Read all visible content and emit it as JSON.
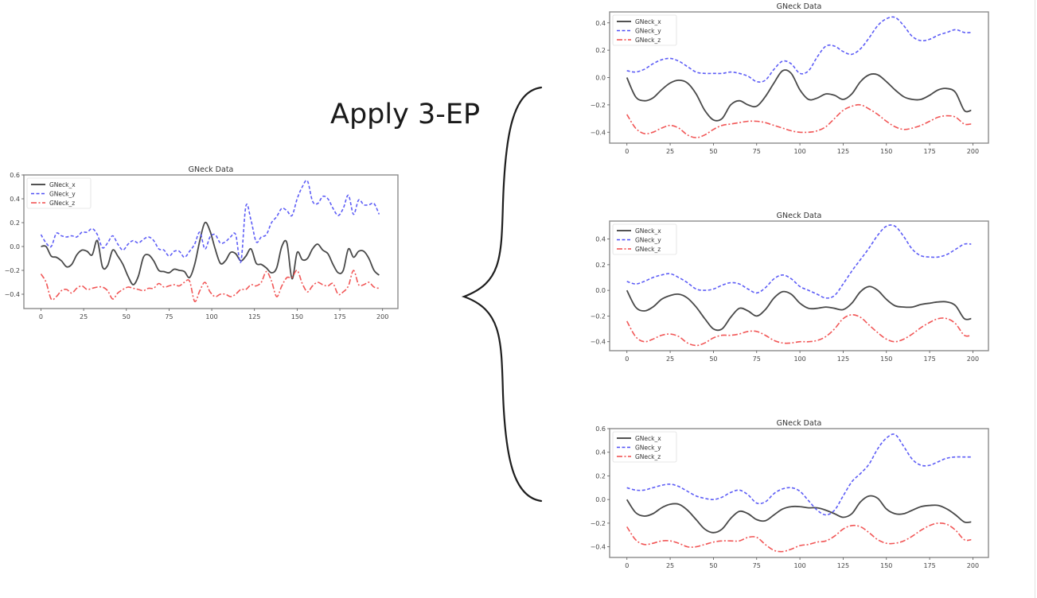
{
  "annotation": {
    "text": "Apply 3-EP"
  },
  "colors": {
    "x": "#3a3a3a",
    "y": "#4f4ff5",
    "z": "#f04848",
    "frame": "#8c8c8c",
    "tick_text": "#444444"
  },
  "legend": [
    "GNeck_x",
    "GNeck_y",
    "GNeck_z"
  ],
  "chart_data": [
    {
      "id": "original",
      "type": "line",
      "title": "GNeck Data",
      "xlabel": "",
      "ylabel": "",
      "xlim": [
        -10,
        209
      ],
      "ylim": [
        -0.52,
        0.6
      ],
      "xticks": [
        0,
        25,
        50,
        75,
        100,
        125,
        150,
        175,
        200
      ],
      "yticks": [
        0.6,
        0.4,
        0.2,
        0.0,
        -0.2,
        -0.4
      ],
      "ytick_labels": [
        "0.6",
        "0.4",
        "0.2",
        "0.0",
        "−0.2",
        "−0.4"
      ],
      "grid": false,
      "legend_position": "upper left",
      "x": [
        0,
        3,
        6,
        9,
        12,
        15,
        18,
        21,
        24,
        27,
        30,
        33,
        36,
        39,
        42,
        45,
        48,
        51,
        54,
        57,
        60,
        63,
        66,
        69,
        72,
        75,
        78,
        81,
        84,
        87,
        90,
        93,
        96,
        99,
        102,
        105,
        108,
        111,
        114,
        117,
        120,
        123,
        126,
        129,
        132,
        135,
        138,
        141,
        144,
        147,
        150,
        153,
        156,
        159,
        162,
        165,
        168,
        171,
        174,
        177,
        180,
        183,
        186,
        189,
        192,
        195,
        198
      ],
      "series": [
        {
          "name": "GNeck_x",
          "style": "solid",
          "values": [
            0.0,
            0.0,
            -0.08,
            -0.09,
            -0.12,
            -0.17,
            -0.15,
            -0.07,
            -0.03,
            -0.04,
            -0.07,
            0.05,
            -0.17,
            -0.16,
            -0.03,
            -0.08,
            -0.15,
            -0.25,
            -0.32,
            -0.25,
            -0.09,
            -0.07,
            -0.12,
            -0.2,
            -0.21,
            -0.22,
            -0.19,
            -0.2,
            -0.21,
            -0.26,
            -0.15,
            0.05,
            0.2,
            0.13,
            -0.02,
            -0.14,
            -0.12,
            -0.05,
            -0.06,
            -0.12,
            -0.08,
            -0.02,
            -0.14,
            -0.15,
            -0.18,
            -0.22,
            -0.18,
            0.0,
            0.03,
            -0.27,
            -0.05,
            -0.11,
            -0.1,
            -0.02,
            0.02,
            -0.03,
            -0.06,
            -0.15,
            -0.22,
            -0.2,
            -0.02,
            -0.09,
            -0.04,
            -0.04,
            -0.1,
            -0.2,
            -0.24
          ]
        },
        {
          "name": "GNeck_y",
          "style": "dashed",
          "values": [
            0.1,
            0.03,
            0.0,
            0.11,
            0.09,
            0.08,
            0.09,
            0.08,
            0.12,
            0.12,
            0.15,
            0.1,
            -0.01,
            0.03,
            0.09,
            0.02,
            -0.03,
            0.02,
            0.05,
            0.03,
            0.06,
            0.08,
            0.05,
            -0.02,
            -0.03,
            -0.08,
            -0.04,
            -0.04,
            -0.09,
            -0.04,
            0.02,
            0.12,
            -0.02,
            0.08,
            0.1,
            0.03,
            0.04,
            0.08,
            0.1,
            -0.13,
            0.34,
            0.22,
            0.04,
            0.08,
            0.1,
            0.2,
            0.25,
            0.32,
            0.3,
            0.26,
            0.4,
            0.5,
            0.55,
            0.38,
            0.36,
            0.42,
            0.4,
            0.32,
            0.26,
            0.32,
            0.43,
            0.27,
            0.39,
            0.35,
            0.35,
            0.36,
            0.27
          ]
        },
        {
          "name": "GNeck_z",
          "style": "dashdot",
          "values": [
            -0.23,
            -0.3,
            -0.44,
            -0.42,
            -0.37,
            -0.36,
            -0.39,
            -0.35,
            -0.33,
            -0.36,
            -0.35,
            -0.34,
            -0.34,
            -0.37,
            -0.44,
            -0.39,
            -0.36,
            -0.34,
            -0.35,
            -0.36,
            -0.37,
            -0.35,
            -0.35,
            -0.31,
            -0.34,
            -0.33,
            -0.32,
            -0.33,
            -0.3,
            -0.29,
            -0.46,
            -0.37,
            -0.3,
            -0.38,
            -0.42,
            -0.4,
            -0.4,
            -0.42,
            -0.4,
            -0.36,
            -0.36,
            -0.32,
            -0.33,
            -0.3,
            -0.21,
            -0.29,
            -0.42,
            -0.33,
            -0.26,
            -0.26,
            -0.2,
            -0.31,
            -0.38,
            -0.33,
            -0.3,
            -0.32,
            -0.33,
            -0.31,
            -0.4,
            -0.38,
            -0.33,
            -0.2,
            -0.32,
            -0.32,
            -0.3,
            -0.34,
            -0.35
          ]
        }
      ]
    },
    {
      "id": "augmented-1",
      "type": "line",
      "title": "GNeck Data",
      "xlabel": "",
      "ylabel": "",
      "xlim": [
        -10,
        209
      ],
      "ylim": [
        -0.48,
        0.48
      ],
      "xticks": [
        0,
        25,
        50,
        75,
        100,
        125,
        150,
        175,
        200
      ],
      "yticks": [
        0.4,
        0.2,
        0.0,
        -0.2,
        -0.4
      ],
      "ytick_labels": [
        "0.4",
        "0.2",
        "0.0",
        "−0.2",
        "−0.4"
      ],
      "grid": false,
      "legend_position": "upper left",
      "x": [
        0,
        5,
        10,
        15,
        20,
        25,
        30,
        35,
        40,
        45,
        50,
        55,
        60,
        65,
        70,
        75,
        80,
        85,
        90,
        95,
        100,
        105,
        110,
        115,
        120,
        125,
        130,
        135,
        140,
        145,
        150,
        155,
        160,
        165,
        170,
        175,
        180,
        185,
        190,
        195,
        199
      ],
      "series": [
        {
          "name": "GNeck_x",
          "style": "solid",
          "values": [
            0.0,
            -0.14,
            -0.17,
            -0.15,
            -0.09,
            -0.04,
            -0.02,
            -0.04,
            -0.12,
            -0.24,
            -0.31,
            -0.3,
            -0.2,
            -0.17,
            -0.2,
            -0.21,
            -0.14,
            -0.04,
            0.05,
            0.03,
            -0.09,
            -0.16,
            -0.15,
            -0.12,
            -0.13,
            -0.16,
            -0.12,
            -0.03,
            0.02,
            0.02,
            -0.03,
            -0.09,
            -0.14,
            -0.16,
            -0.16,
            -0.13,
            -0.09,
            -0.08,
            -0.11,
            -0.24,
            -0.24
          ]
        },
        {
          "name": "GNeck_y",
          "style": "dashed",
          "values": [
            0.05,
            0.04,
            0.06,
            0.1,
            0.13,
            0.14,
            0.12,
            0.08,
            0.04,
            0.03,
            0.03,
            0.03,
            0.04,
            0.03,
            0.01,
            -0.03,
            -0.02,
            0.06,
            0.12,
            0.1,
            0.03,
            0.05,
            0.15,
            0.23,
            0.23,
            0.19,
            0.17,
            0.21,
            0.29,
            0.38,
            0.43,
            0.44,
            0.38,
            0.3,
            0.27,
            0.28,
            0.31,
            0.33,
            0.35,
            0.33,
            0.33
          ]
        },
        {
          "name": "GNeck_z",
          "style": "dashdot",
          "values": [
            -0.27,
            -0.37,
            -0.41,
            -0.4,
            -0.37,
            -0.35,
            -0.37,
            -0.42,
            -0.44,
            -0.42,
            -0.38,
            -0.35,
            -0.34,
            -0.33,
            -0.32,
            -0.32,
            -0.33,
            -0.35,
            -0.37,
            -0.39,
            -0.4,
            -0.4,
            -0.39,
            -0.36,
            -0.3,
            -0.24,
            -0.21,
            -0.2,
            -0.23,
            -0.27,
            -0.32,
            -0.36,
            -0.38,
            -0.37,
            -0.35,
            -0.32,
            -0.29,
            -0.28,
            -0.29,
            -0.34,
            -0.34
          ]
        }
      ]
    },
    {
      "id": "augmented-2",
      "type": "line",
      "title": "GNeck Data",
      "xlabel": "",
      "ylabel": "",
      "xlim": [
        -10,
        209
      ],
      "ylim": [
        -0.47,
        0.54
      ],
      "xticks": [
        0,
        25,
        50,
        75,
        100,
        125,
        150,
        175,
        200
      ],
      "yticks": [
        0.4,
        0.2,
        0.0,
        -0.2,
        -0.4
      ],
      "ytick_labels": [
        "0.4",
        "0.2",
        "0.0",
        "−0.2",
        "−0.4"
      ],
      "grid": false,
      "legend_position": "upper left",
      "x": [
        0,
        5,
        10,
        15,
        20,
        25,
        30,
        35,
        40,
        45,
        50,
        55,
        60,
        65,
        70,
        75,
        80,
        85,
        90,
        95,
        100,
        105,
        110,
        115,
        120,
        125,
        130,
        135,
        140,
        145,
        150,
        155,
        160,
        165,
        170,
        175,
        180,
        185,
        190,
        195,
        199
      ],
      "series": [
        {
          "name": "GNeck_x",
          "style": "solid",
          "values": [
            0.0,
            -0.13,
            -0.16,
            -0.13,
            -0.07,
            -0.04,
            -0.03,
            -0.06,
            -0.13,
            -0.22,
            -0.3,
            -0.3,
            -0.21,
            -0.14,
            -0.16,
            -0.2,
            -0.15,
            -0.06,
            -0.01,
            -0.03,
            -0.1,
            -0.14,
            -0.14,
            -0.13,
            -0.14,
            -0.15,
            -0.1,
            -0.01,
            0.03,
            0.0,
            -0.07,
            -0.12,
            -0.13,
            -0.13,
            -0.11,
            -0.1,
            -0.09,
            -0.09,
            -0.12,
            -0.22,
            -0.22
          ]
        },
        {
          "name": "GNeck_y",
          "style": "dashed",
          "values": [
            0.07,
            0.05,
            0.07,
            0.1,
            0.12,
            0.13,
            0.1,
            0.06,
            0.01,
            0.0,
            0.01,
            0.04,
            0.06,
            0.05,
            0.01,
            -0.02,
            0.02,
            0.09,
            0.12,
            0.09,
            0.03,
            0.0,
            -0.03,
            -0.06,
            -0.04,
            0.05,
            0.15,
            0.24,
            0.33,
            0.43,
            0.5,
            0.5,
            0.42,
            0.32,
            0.27,
            0.26,
            0.26,
            0.28,
            0.32,
            0.36,
            0.36
          ]
        },
        {
          "name": "GNeck_z",
          "style": "dashdot",
          "values": [
            -0.24,
            -0.36,
            -0.4,
            -0.38,
            -0.35,
            -0.34,
            -0.36,
            -0.41,
            -0.43,
            -0.41,
            -0.37,
            -0.35,
            -0.35,
            -0.34,
            -0.32,
            -0.32,
            -0.35,
            -0.39,
            -0.41,
            -0.41,
            -0.4,
            -0.4,
            -0.39,
            -0.36,
            -0.3,
            -0.22,
            -0.19,
            -0.21,
            -0.27,
            -0.33,
            -0.38,
            -0.4,
            -0.38,
            -0.34,
            -0.29,
            -0.25,
            -0.22,
            -0.22,
            -0.26,
            -0.35,
            -0.35
          ]
        }
      ]
    },
    {
      "id": "augmented-3",
      "type": "line",
      "title": "GNeck Data",
      "xlabel": "",
      "ylabel": "",
      "xlim": [
        -10,
        209
      ],
      "ylim": [
        -0.49,
        0.6
      ],
      "xticks": [
        0,
        25,
        50,
        75,
        100,
        125,
        150,
        175,
        200
      ],
      "yticks": [
        0.6,
        0.4,
        0.2,
        0.0,
        -0.2,
        -0.4
      ],
      "ytick_labels": [
        "0.6",
        "0.4",
        "0.2",
        "0.0",
        "−0.2",
        "−0.4"
      ],
      "grid": false,
      "legend_position": "upper left",
      "x": [
        0,
        5,
        10,
        15,
        20,
        25,
        30,
        35,
        40,
        45,
        50,
        55,
        60,
        65,
        70,
        75,
        80,
        85,
        90,
        95,
        100,
        105,
        110,
        115,
        120,
        125,
        130,
        135,
        140,
        145,
        150,
        155,
        160,
        165,
        170,
        175,
        180,
        185,
        190,
        195,
        199
      ],
      "series": [
        {
          "name": "GNeck_x",
          "style": "solid",
          "values": [
            0.0,
            -0.11,
            -0.14,
            -0.12,
            -0.07,
            -0.04,
            -0.04,
            -0.09,
            -0.17,
            -0.25,
            -0.28,
            -0.25,
            -0.16,
            -0.1,
            -0.12,
            -0.17,
            -0.18,
            -0.13,
            -0.08,
            -0.06,
            -0.06,
            -0.07,
            -0.07,
            -0.09,
            -0.12,
            -0.15,
            -0.12,
            -0.02,
            0.03,
            0.01,
            -0.08,
            -0.12,
            -0.12,
            -0.09,
            -0.06,
            -0.05,
            -0.05,
            -0.08,
            -0.13,
            -0.19,
            -0.19
          ]
        },
        {
          "name": "GNeck_y",
          "style": "dashed",
          "values": [
            0.1,
            0.08,
            0.08,
            0.1,
            0.12,
            0.13,
            0.11,
            0.07,
            0.03,
            0.01,
            0.0,
            0.02,
            0.06,
            0.08,
            0.04,
            -0.03,
            -0.02,
            0.05,
            0.09,
            0.1,
            0.07,
            -0.01,
            -0.09,
            -0.13,
            -0.09,
            0.03,
            0.15,
            0.22,
            0.3,
            0.43,
            0.52,
            0.55,
            0.45,
            0.34,
            0.29,
            0.29,
            0.32,
            0.35,
            0.36,
            0.36,
            0.36
          ]
        },
        {
          "name": "GNeck_z",
          "style": "dashdot",
          "values": [
            -0.23,
            -0.34,
            -0.38,
            -0.37,
            -0.35,
            -0.35,
            -0.37,
            -0.4,
            -0.4,
            -0.38,
            -0.36,
            -0.35,
            -0.35,
            -0.35,
            -0.32,
            -0.32,
            -0.38,
            -0.43,
            -0.44,
            -0.42,
            -0.39,
            -0.38,
            -0.36,
            -0.35,
            -0.31,
            -0.25,
            -0.22,
            -0.23,
            -0.28,
            -0.34,
            -0.37,
            -0.37,
            -0.35,
            -0.31,
            -0.26,
            -0.22,
            -0.2,
            -0.21,
            -0.26,
            -0.34,
            -0.34
          ]
        }
      ]
    }
  ]
}
